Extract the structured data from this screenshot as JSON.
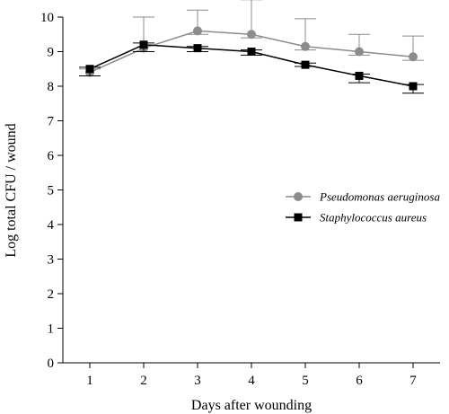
{
  "chart_data": {
    "type": "line",
    "title": "",
    "xlabel": "Days after wounding",
    "ylabel": "Log total CFU / wound",
    "x": [
      1,
      2,
      3,
      4,
      5,
      6,
      7
    ],
    "xlim": [
      0.5,
      7.5
    ],
    "ylim": [
      0,
      10
    ],
    "xticks": [
      "1",
      "2",
      "3",
      "4",
      "5",
      "6",
      "7"
    ],
    "yticks": [
      "0",
      "1",
      "2",
      "3",
      "4",
      "5",
      "6",
      "7",
      "8",
      "9",
      "10"
    ],
    "grid": false,
    "legend_position": "right-middle",
    "series": [
      {
        "name": "Pseudomonas aeruginosa",
        "marker": "circle",
        "color": "#8c8c8c",
        "values": [
          8.4,
          9.1,
          9.6,
          9.5,
          9.15,
          9.0,
          8.85
        ],
        "error_upper": [
          0.1,
          0.9,
          0.6,
          1.0,
          0.8,
          0.5,
          0.6
        ],
        "error_lower": [
          0.1,
          0.1,
          0.1,
          0.1,
          0.1,
          0.1,
          0.1
        ]
      },
      {
        "name": "Staphylococcus aureus",
        "marker": "square",
        "color": "#000000",
        "values": [
          8.5,
          9.2,
          9.1,
          9.0,
          8.62,
          8.3,
          8.0
        ],
        "error_upper": [
          0.05,
          0.05,
          0.05,
          0.05,
          0.05,
          0.05,
          0.05
        ],
        "error_lower": [
          0.2,
          0.2,
          0.1,
          0.1,
          0.05,
          0.2,
          0.2
        ]
      }
    ]
  }
}
